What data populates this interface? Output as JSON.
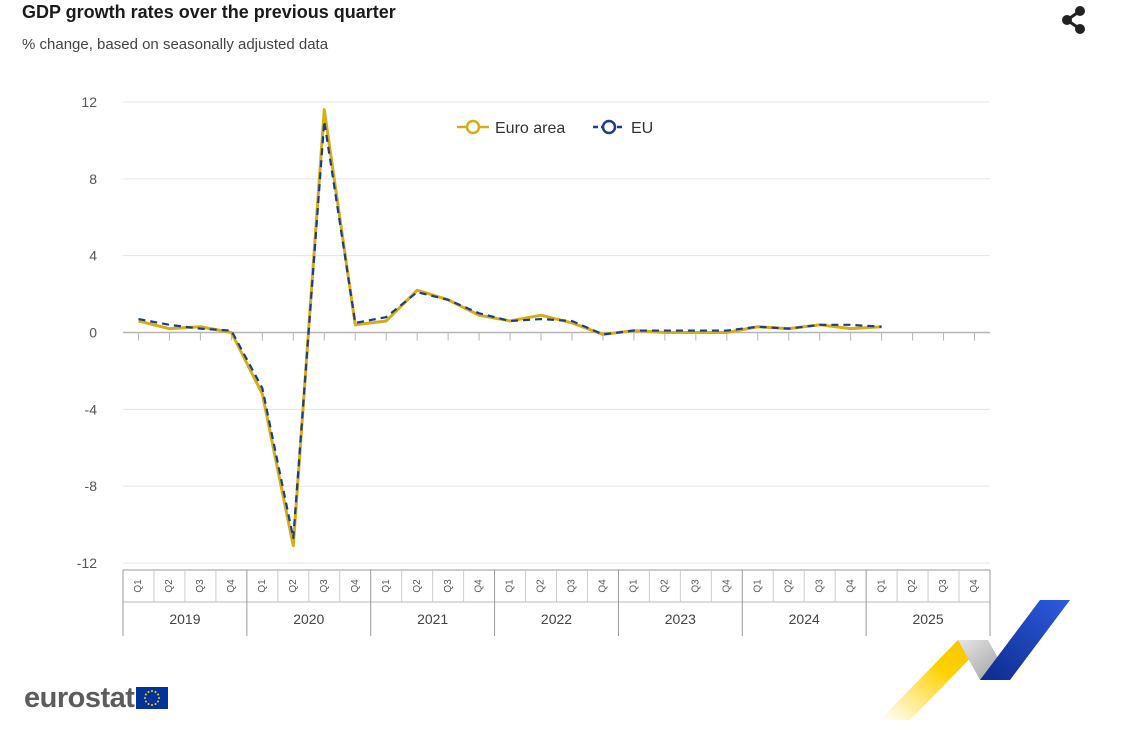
{
  "chart_data": {
    "type": "line",
    "title": "GDP growth rates over the previous quarter",
    "subtitle": "% change, based on seasonally adjusted data",
    "ylim": [
      -12,
      12
    ],
    "yticks": [
      12,
      8,
      4,
      0,
      -4,
      -8,
      -12
    ],
    "years": [
      "2019",
      "2020",
      "2021",
      "2022",
      "2023",
      "2024",
      "2025"
    ],
    "quarters": [
      "Q1",
      "Q2",
      "Q3",
      "Q4"
    ],
    "legend_position": "top-center",
    "grid": true,
    "series": [
      {
        "name": "Euro area",
        "color": "#d4ae12",
        "values": [
          0.6,
          0.2,
          0.3,
          0.0,
          -3.2,
          -11.1,
          11.6,
          0.4,
          0.6,
          2.2,
          1.7,
          0.9,
          0.6,
          0.9,
          0.5,
          -0.1,
          0.1,
          0.0,
          0.0,
          0.0,
          0.3,
          0.2,
          0.4,
          0.2,
          0.3
        ]
      },
      {
        "name": "EU",
        "color": "#1f3c88",
        "values": [
          0.7,
          0.4,
          0.2,
          0.1,
          -2.9,
          -10.7,
          11.0,
          0.5,
          0.8,
          2.1,
          1.7,
          1.0,
          0.6,
          0.7,
          0.6,
          -0.1,
          0.1,
          0.1,
          0.1,
          0.1,
          0.3,
          0.2,
          0.4,
          0.4,
          0.3
        ]
      }
    ]
  },
  "branding": {
    "logo_text": "eurostat",
    "flag_color": "#003399",
    "star_color": "#ffcc00"
  },
  "icons": {
    "share": "share-icon"
  }
}
